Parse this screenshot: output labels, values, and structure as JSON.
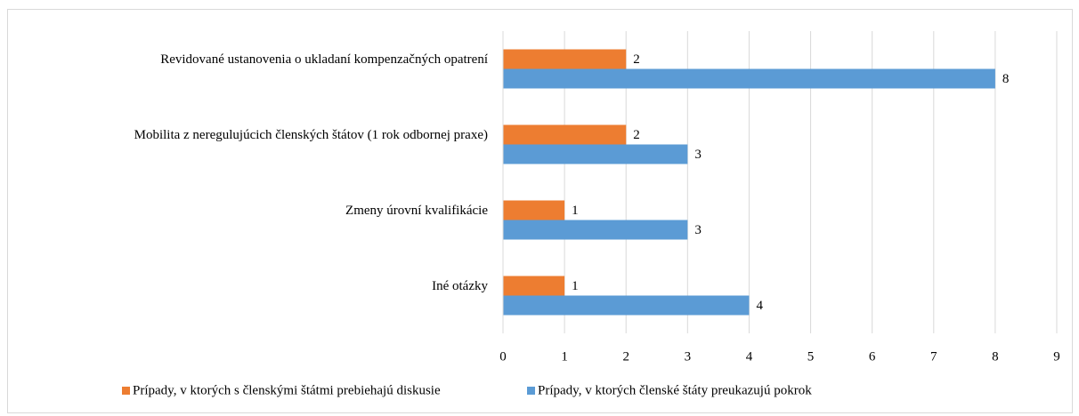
{
  "chart_data": {
    "type": "bar",
    "orientation": "horizontal",
    "categories": [
      "Revidované ustanovenia o ukladaní kompenzačných opatrení",
      "Mobilita z neregulujúcich členských štátov (1 rok odbornej praxe)",
      "Zmeny úrovní kvalifikácie",
      "Iné otázky"
    ],
    "series": [
      {
        "name": "Prípady, v ktorých s členskými štátmi prebiehajú diskusie",
        "color": "#ed7d31",
        "values": [
          2,
          2,
          1,
          1
        ]
      },
      {
        "name": "Prípady, v ktorých členské štáty preukazujú pokrok",
        "color": "#5b9bd5",
        "values": [
          8,
          3,
          3,
          4
        ]
      }
    ],
    "xlim": [
      0,
      9
    ],
    "xticks": [
      0,
      1,
      2,
      3,
      4,
      5,
      6,
      7,
      8,
      9
    ],
    "grid": true,
    "legend": "bottom"
  }
}
